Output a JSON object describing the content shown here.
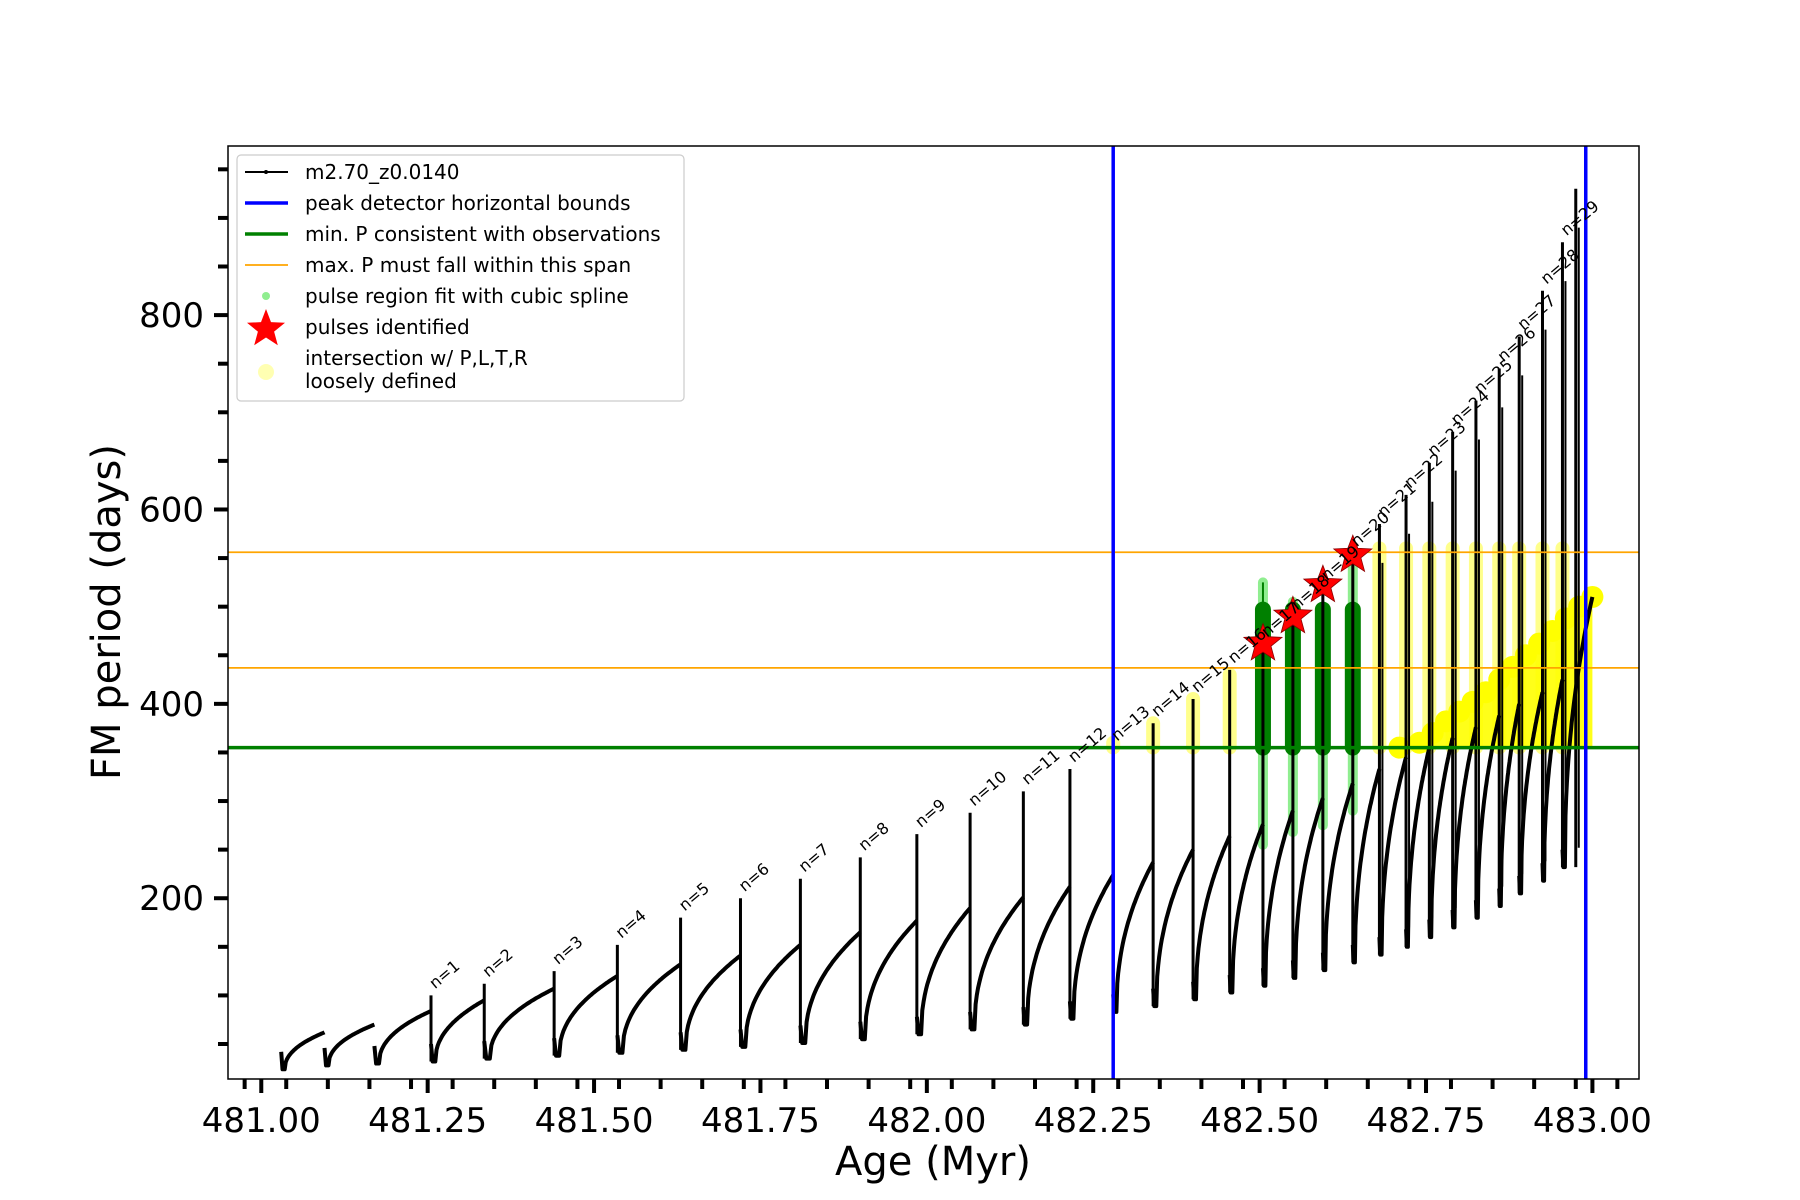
{
  "chart_data": {
    "type": "line",
    "title": "",
    "xlabel": "Age (Myr)",
    "ylabel": "FM period (days)",
    "xlim": [
      480.95,
      483.07
    ],
    "ylim": [
      14,
      974
    ],
    "xticks": [
      481.0,
      481.25,
      481.5,
      481.75,
      482.0,
      482.25,
      482.5,
      482.75,
      483.0
    ],
    "xtick_labels": [
      "481.00",
      "481.25",
      "481.50",
      "481.75",
      "482.00",
      "482.25",
      "482.50",
      "482.75",
      "483.00"
    ],
    "yticks": [
      200,
      400,
      600,
      800
    ],
    "ytick_labels": [
      "200",
      "400",
      "600",
      "800"
    ],
    "grid": false,
    "legend_position": "upper-left",
    "colors": {
      "track": "#000000",
      "bounds": "#0000ff",
      "min_p": "#008000",
      "max_p": "#ffa500",
      "spline": "#90ee90",
      "spline_dark": "#008000",
      "pulses": "#ff0000",
      "intersection": "#ffff00"
    },
    "legend": [
      {
        "label": "m2.70_z0.0140",
        "style": "track"
      },
      {
        "label": "peak detector horizontal bounds",
        "style": "bounds"
      },
      {
        "label": "min. P consistent with observations",
        "style": "min_p"
      },
      {
        "label": "max. P must fall within this span",
        "style": "max_p"
      },
      {
        "label": "pulse region fit with cubic spline",
        "style": "spline"
      },
      {
        "label": "pulses identified",
        "style": "pulses"
      },
      {
        "label": "intersection w/ P,L,T,R",
        "label2": "loosely defined",
        "style": "intersection"
      }
    ],
    "series": [
      {
        "name": "m2.70_z0.0140",
        "pulses": [
          {
            "n": "",
            "start": 481.03,
            "end": 481.095,
            "min": 24,
            "end_p": 62
          },
          {
            "n": "",
            "start": 481.095,
            "end": 481.17,
            "min": 28,
            "end_p": 70
          },
          {
            "n": "",
            "start": 481.17,
            "end": 481.255,
            "min": 30,
            "end_p": 84
          },
          {
            "n": "n=1",
            "start": 481.255,
            "end": 481.335,
            "min": 32,
            "end_p": 95
          },
          {
            "n": "n=2",
            "start": 481.335,
            "end": 481.44,
            "min": 35,
            "end_p": 107
          },
          {
            "n": "n=3",
            "start": 481.44,
            "end": 481.535,
            "min": 38,
            "end_p": 120
          },
          {
            "n": "n=4",
            "start": 481.535,
            "end": 481.63,
            "min": 41,
            "end_p": 132
          },
          {
            "n": "n=5",
            "start": 481.63,
            "end": 481.72,
            "min": 44,
            "end_p": 141
          },
          {
            "n": "n=6",
            "start": 481.72,
            "end": 481.81,
            "min": 47,
            "end_p": 152
          },
          {
            "n": "n=7",
            "start": 481.81,
            "end": 481.9,
            "min": 51,
            "end_p": 165
          },
          {
            "n": "n=8",
            "start": 481.9,
            "end": 481.985,
            "min": 55,
            "end_p": 177
          },
          {
            "n": "n=9",
            "start": 481.985,
            "end": 482.065,
            "min": 60,
            "end_p": 190
          },
          {
            "n": "n=10",
            "start": 482.065,
            "end": 482.145,
            "min": 65,
            "end_p": 201
          },
          {
            "n": "n=11",
            "start": 482.145,
            "end": 482.215,
            "min": 70,
            "end_p": 212
          },
          {
            "n": "n=12",
            "start": 482.215,
            "end": 482.28,
            "min": 76,
            "end_p": 224
          },
          {
            "n": "n=13",
            "start": 482.28,
            "end": 482.34,
            "min": 83,
            "end_p": 237
          },
          {
            "n": "n=14",
            "start": 482.34,
            "end": 482.4,
            "min": 89,
            "end_p": 250
          },
          {
            "n": "n=15",
            "start": 482.4,
            "end": 482.455,
            "min": 96,
            "end_p": 264
          },
          {
            "n": "n=16",
            "start": 482.455,
            "end": 482.505,
            "min": 103,
            "end_p": 276
          },
          {
            "n": "n=17",
            "start": 482.505,
            "end": 482.55,
            "min": 110,
            "end_p": 290
          },
          {
            "n": "n=18",
            "start": 482.55,
            "end": 482.595,
            "min": 118,
            "end_p": 303
          },
          {
            "n": "n=19",
            "start": 482.595,
            "end": 482.64,
            "min": 126,
            "end_p": 318
          },
          {
            "n": "n=20",
            "start": 482.64,
            "end": 482.68,
            "min": 134,
            "end_p": 333
          },
          {
            "n": "n=21",
            "start": 482.68,
            "end": 482.72,
            "min": 142,
            "end_p": 345
          },
          {
            "n": "n=22",
            "start": 482.72,
            "end": 482.755,
            "min": 150,
            "end_p": 355
          },
          {
            "n": "n=23",
            "start": 482.755,
            "end": 482.79,
            "min": 160,
            "end_p": 365
          },
          {
            "n": "n=24",
            "start": 482.79,
            "end": 482.825,
            "min": 170,
            "end_p": 376
          },
          {
            "n": "n=25",
            "start": 482.825,
            "end": 482.86,
            "min": 180,
            "end_p": 388
          },
          {
            "n": "n=26",
            "start": 482.86,
            "end": 482.89,
            "min": 192,
            "end_p": 400
          },
          {
            "n": "n=27",
            "start": 482.89,
            "end": 482.925,
            "min": 205,
            "end_p": 412
          },
          {
            "n": "n=28",
            "start": 482.925,
            "end": 482.955,
            "min": 218,
            "end_p": 425
          },
          {
            "n": "n=29",
            "start": 482.955,
            "end": 483.0,
            "min": 232,
            "end_p": 510
          }
        ],
        "spike_peaks": [
          {
            "x": 481.255,
            "y": 100
          },
          {
            "x": 481.335,
            "y": 112
          },
          {
            "x": 481.44,
            "y": 125
          },
          {
            "x": 481.535,
            "y": 152
          },
          {
            "x": 481.63,
            "y": 180
          },
          {
            "x": 481.72,
            "y": 200
          },
          {
            "x": 481.81,
            "y": 220
          },
          {
            "x": 481.9,
            "y": 242
          },
          {
            "x": 481.985,
            "y": 266
          },
          {
            "x": 482.065,
            "y": 288
          },
          {
            "x": 482.145,
            "y": 310
          },
          {
            "x": 482.215,
            "y": 333
          },
          {
            "x": 482.28,
            "y": 355
          },
          {
            "x": 482.34,
            "y": 380
          },
          {
            "x": 482.4,
            "y": 405
          },
          {
            "x": 482.455,
            "y": 435
          },
          {
            "x": 482.505,
            "y": 462
          },
          {
            "x": 482.55,
            "y": 490
          },
          {
            "x": 482.595,
            "y": 520
          },
          {
            "x": 482.64,
            "y": 555
          },
          {
            "x": 482.68,
            "y": 585
          },
          {
            "x": 482.72,
            "y": 615
          },
          {
            "x": 482.755,
            "y": 648
          },
          {
            "x": 482.79,
            "y": 680
          },
          {
            "x": 482.825,
            "y": 712
          },
          {
            "x": 482.86,
            "y": 745
          },
          {
            "x": 482.89,
            "y": 778
          },
          {
            "x": 482.925,
            "y": 825
          },
          {
            "x": 482.955,
            "y": 875
          },
          {
            "x": 482.975,
            "y": 930
          }
        ]
      },
      {
        "name": "peak detector horizontal bounds",
        "vlines": [
          482.28,
          482.99
        ]
      },
      {
        "name": "min. P consistent with observations",
        "hline": 355
      },
      {
        "name": "max. P must fall within this span",
        "hlines": [
          437,
          556
        ]
      },
      {
        "name": "pulse region fit with cubic spline",
        "columns": [
          {
            "x": 482.505,
            "low": 255,
            "high": 525,
            "dark_low": 355,
            "dark_high": 497
          },
          {
            "x": 482.55,
            "low": 268,
            "high": 505,
            "dark_low": 355,
            "dark_high": 497
          },
          {
            "x": 482.595,
            "low": 275,
            "high": 500,
            "dark_low": 355,
            "dark_high": 497
          },
          {
            "x": 482.64,
            "low": 290,
            "high": 540,
            "dark_low": 355,
            "dark_high": 497
          }
        ]
      },
      {
        "name": "pulses identified",
        "points": [
          {
            "x": 482.505,
            "y": 462
          },
          {
            "x": 482.55,
            "y": 490
          },
          {
            "x": 482.595,
            "y": 522
          },
          {
            "x": 482.64,
            "y": 553
          }
        ]
      },
      {
        "name": "intersection w/ P,L,T,R loosely defined",
        "columns": [
          {
            "x": 482.28,
            "low": 355,
            "high": 360
          },
          {
            "x": 482.34,
            "low": 355,
            "high": 380
          },
          {
            "x": 482.4,
            "low": 355,
            "high": 405
          },
          {
            "x": 482.455,
            "low": 355,
            "high": 430
          },
          {
            "x": 482.68,
            "low": 355,
            "high": 560
          },
          {
            "x": 482.72,
            "low": 355,
            "high": 560
          },
          {
            "x": 482.755,
            "low": 355,
            "high": 560
          },
          {
            "x": 482.79,
            "low": 355,
            "high": 560
          },
          {
            "x": 482.825,
            "low": 355,
            "high": 560
          },
          {
            "x": 482.86,
            "low": 355,
            "high": 560
          },
          {
            "x": 482.89,
            "low": 355,
            "high": 560
          },
          {
            "x": 482.925,
            "low": 355,
            "high": 560
          },
          {
            "x": 482.955,
            "low": 355,
            "high": 560
          }
        ],
        "ridge": [
          {
            "x": 482.71,
            "y": 355
          },
          {
            "x": 482.74,
            "y": 360
          },
          {
            "x": 482.76,
            "y": 370
          },
          {
            "x": 482.78,
            "y": 382
          },
          {
            "x": 482.8,
            "y": 392
          },
          {
            "x": 482.82,
            "y": 402
          },
          {
            "x": 482.84,
            "y": 412
          },
          {
            "x": 482.86,
            "y": 425
          },
          {
            "x": 482.88,
            "y": 438
          },
          {
            "x": 482.9,
            "y": 450
          },
          {
            "x": 482.92,
            "y": 462
          },
          {
            "x": 482.94,
            "y": 475
          },
          {
            "x": 482.96,
            "y": 488
          },
          {
            "x": 482.98,
            "y": 500
          },
          {
            "x": 483.0,
            "y": 510
          }
        ]
      }
    ]
  }
}
